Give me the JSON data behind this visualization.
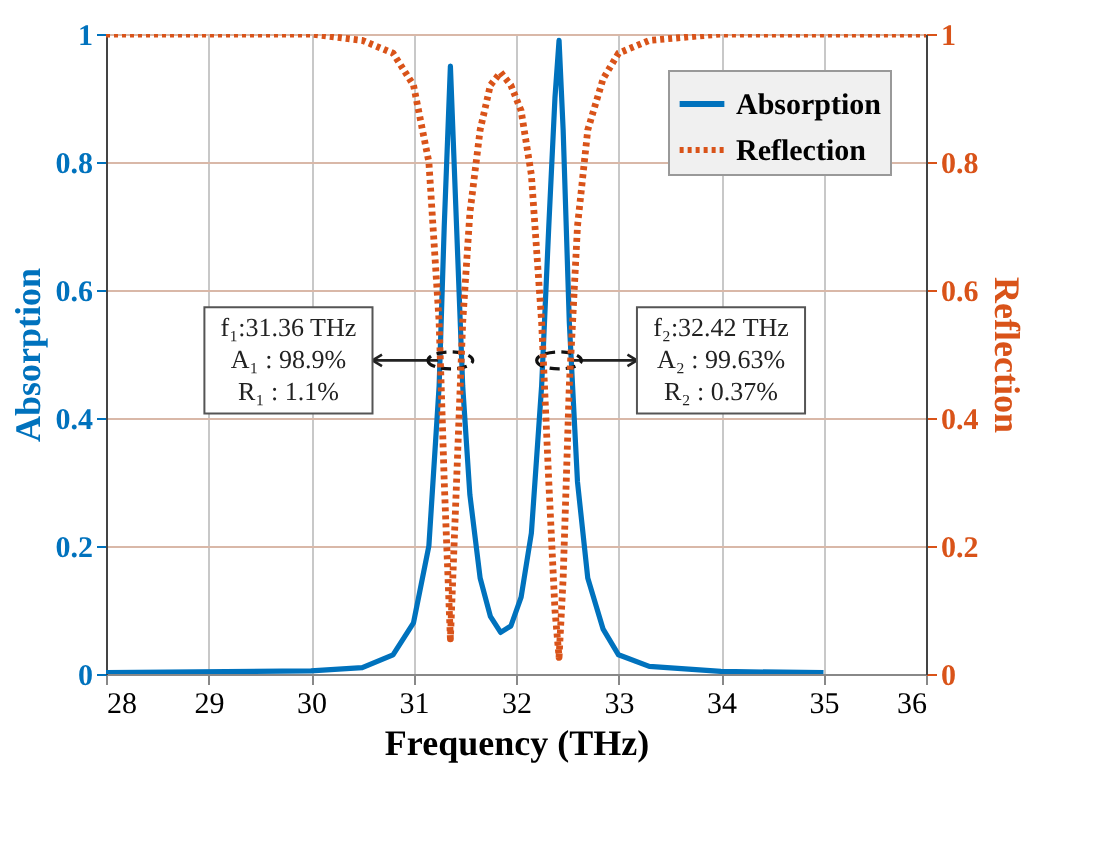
{
  "chart_data": {
    "type": "line",
    "xlabel": "Frequency (THz)",
    "ylabel": "Absorption",
    "y2label": "Reflection",
    "xlim": [
      28,
      36
    ],
    "xticks": [
      28,
      29,
      30,
      31,
      32,
      33,
      34,
      35,
      36
    ],
    "ylim": [
      0,
      1
    ],
    "yticks": [
      0,
      0.2,
      0.4,
      0.6,
      0.8,
      1
    ],
    "y2lim": [
      0,
      1
    ],
    "y2ticks": [
      0,
      0.2,
      0.4,
      0.6,
      0.8,
      1
    ],
    "grid": true,
    "legend": "top right",
    "series": [
      {
        "name": "Absorption",
        "color": "#0072bd",
        "line_style": "solid",
        "x": [
          28,
          30,
          30.5,
          30.8,
          31.0,
          31.15,
          31.25,
          31.3,
          31.36,
          31.42,
          31.48,
          31.55,
          31.65,
          31.75,
          31.85,
          31.95,
          32.05,
          32.15,
          32.25,
          32.32,
          32.38,
          32.42,
          32.46,
          32.52,
          32.6,
          32.7,
          32.85,
          33,
          33.3,
          34,
          35
        ],
        "values": [
          0.002,
          0.005,
          0.01,
          0.03,
          0.08,
          0.2,
          0.45,
          0.7,
          0.95,
          0.7,
          0.45,
          0.28,
          0.15,
          0.09,
          0.065,
          0.075,
          0.12,
          0.22,
          0.45,
          0.7,
          0.9,
          0.99,
          0.85,
          0.55,
          0.3,
          0.15,
          0.07,
          0.03,
          0.012,
          0.004,
          0.002
        ]
      },
      {
        "name": "Reflection",
        "color": "#d95319",
        "line_style": "dotted",
        "axis": "y2",
        "x": [
          28,
          30,
          30.5,
          30.8,
          31.0,
          31.15,
          31.25,
          31.3,
          31.36,
          31.42,
          31.48,
          31.55,
          31.65,
          31.75,
          31.85,
          31.95,
          32.05,
          32.15,
          32.25,
          32.32,
          32.38,
          32.42,
          32.46,
          32.52,
          32.6,
          32.7,
          32.85,
          33,
          33.3,
          34,
          36
        ],
        "values": [
          1,
          1,
          0.99,
          0.97,
          0.92,
          0.8,
          0.55,
          0.3,
          0.055,
          0.3,
          0.55,
          0.72,
          0.85,
          0.92,
          0.94,
          0.92,
          0.88,
          0.78,
          0.55,
          0.3,
          0.1,
          0.026,
          0.15,
          0.45,
          0.7,
          0.85,
          0.93,
          0.97,
          0.99,
          1,
          1
        ]
      }
    ],
    "annotations": [
      {
        "text": "f₁:31.36 THz\nA₁ : 98.9%\nR₁ : 1.1%",
        "x": 31.36,
        "y": 0.49
      },
      {
        "text": "f₂:32.42 THz\nA₂ : 99.63%\nR₂ : 0.37%",
        "x": 32.42,
        "y": 0.49
      }
    ]
  }
}
